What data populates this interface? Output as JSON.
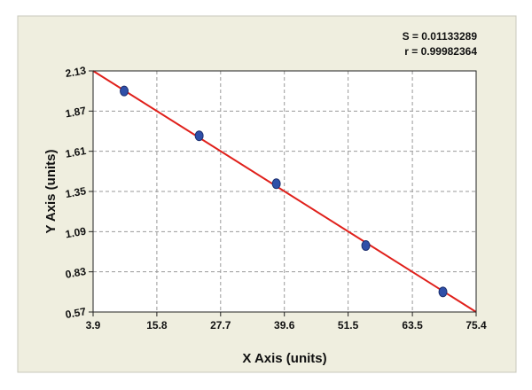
{
  "chart_data": {
    "type": "scatter",
    "xlabel": "X Axis (units)",
    "ylabel": "Y Axis (units)",
    "annotations": [
      "S = 0.01133289",
      "r = 0.99982364"
    ],
    "points": {
      "x": [
        9.7,
        23.7,
        38.1,
        54.8,
        69.2
      ],
      "y": [
        2.0,
        1.71,
        1.4,
        1.0,
        0.7
      ],
      "color": "#2f4fa8"
    },
    "fit": {
      "x": [
        3.9,
        75.4
      ],
      "y": [
        2.13,
        0.57
      ],
      "color": "#e0201b"
    },
    "xlim": [
      3.9,
      75.4
    ],
    "ylim": [
      0.57,
      2.13
    ],
    "xticks": [
      3.9,
      15.8,
      27.7,
      39.6,
      51.5,
      63.5,
      75.4
    ],
    "yticks": [
      0.57,
      0.83,
      1.09,
      1.35,
      1.61,
      1.87,
      2.13
    ],
    "grid": true
  }
}
